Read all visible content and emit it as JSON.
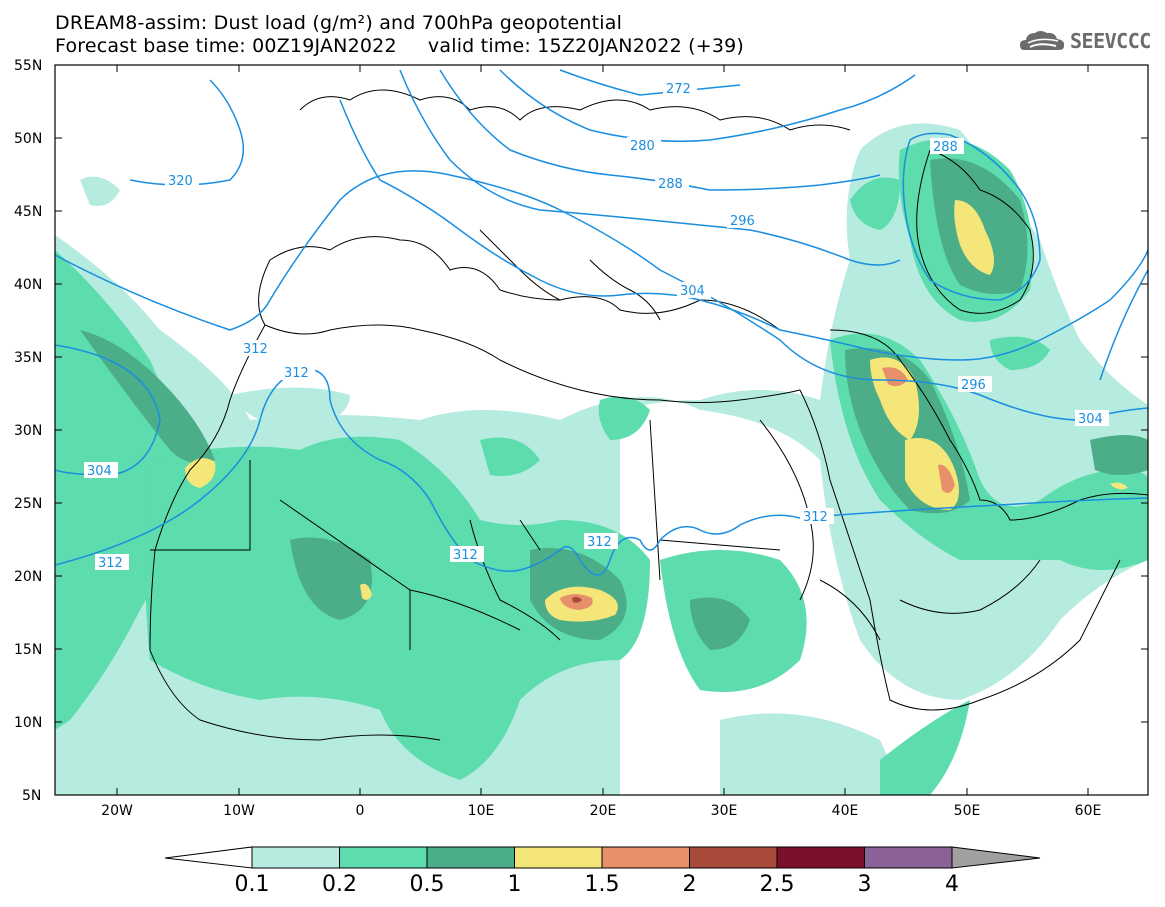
{
  "header": {
    "title_line1": "DREAM8-assim: Dust load (g/m²) and 700hPa geopotential",
    "title_line2": "Forecast base time: 00Z19JAN2022     valid time: 15Z20JAN2022 (+39)",
    "logo_text": "SEEVCCC"
  },
  "map": {
    "lat_labels": [
      "55N",
      "50N",
      "45N",
      "40N",
      "35N",
      "30N",
      "25N",
      "20N",
      "15N",
      "10N",
      "5N"
    ],
    "lon_labels": [
      "20W",
      "10W",
      "0",
      "10E",
      "20E",
      "30E",
      "40E",
      "50E",
      "60E"
    ],
    "contour_labels": [
      "272",
      "280",
      "288",
      "296",
      "304",
      "312",
      "320",
      "288",
      "296",
      "304",
      "312",
      "304",
      "312",
      "312",
      "312",
      "312"
    ],
    "colors": {
      "dust_0_1": "#b5ecdf",
      "dust_0_2": "#5ddcae",
      "dust_0_5": "#4cae88",
      "dust_1": "#f5e67a",
      "dust_1_5": "#e8906a",
      "dust_2": "#a84a3a",
      "dust_2_5": "#7c0f2a",
      "dust_3": "#8b6298",
      "dust_4": "#a0a0a0",
      "contour": "#1a8ee0"
    }
  },
  "colorbar": {
    "ticks": [
      "0.1",
      "0.2",
      "0.5",
      "1",
      "1.5",
      "2",
      "2.5",
      "3",
      "4"
    ]
  }
}
